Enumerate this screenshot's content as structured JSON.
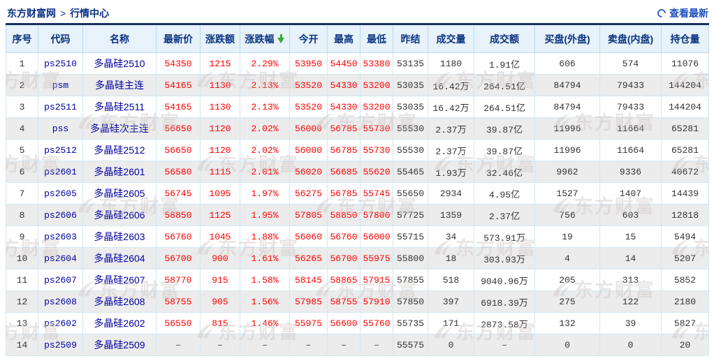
{
  "breadcrumb": {
    "site": "东方财富网",
    "separator": ">",
    "section": "行情中心"
  },
  "toolbar": {
    "refresh_label": "查看最新",
    "refresh_icon": "refresh-circle"
  },
  "watermark": {
    "text": "东方财富",
    "logo_icon": "eastmoney-swoosh"
  },
  "colors": {
    "accent_navy": "#16305e",
    "header_bg": "#e7f2fb",
    "header_text": "#0a3380",
    "link_blue": "#0000a0",
    "up_red": "#ff0000",
    "sort_arrow_green": "#2fae2f",
    "row_alt_gray": "#ececec"
  },
  "table": {
    "columns": [
      "序号",
      "代码",
      "名称",
      "最新价",
      "涨跌额",
      "涨跌幅",
      "今开",
      "最高",
      "最低",
      "昨结",
      "成交量",
      "成交额",
      "买盘(外盘)",
      "卖盘(内盘)",
      "持仓量"
    ],
    "column_keys": [
      "seq",
      "code",
      "name",
      "last",
      "change",
      "pct",
      "open",
      "high",
      "low",
      "prevsettle",
      "volume",
      "turnover",
      "buy-outer",
      "sell-inner",
      "open-interest"
    ],
    "sorted_column": "涨跌幅",
    "sort_direction": "desc",
    "rows": [
      [
        "1",
        "ps2510",
        "多晶硅2510",
        "54350",
        "1215",
        "2.29%",
        "53950",
        "54450",
        "53380",
        "53135",
        "1180",
        "1.91亿",
        "606",
        "574",
        "11076"
      ],
      [
        "2",
        "psm",
        "多晶硅主连",
        "54165",
        "1130",
        "2.13%",
        "53520",
        "54330",
        "53200",
        "53035",
        "16.42万",
        "264.51亿",
        "84794",
        "79433",
        "144204"
      ],
      [
        "3",
        "ps2511",
        "多晶硅2511",
        "54165",
        "1130",
        "2.13%",
        "53520",
        "54330",
        "53200",
        "53035",
        "16.42万",
        "264.51亿",
        "84794",
        "79433",
        "144204"
      ],
      [
        "4",
        "pss",
        "多晶硅次主连",
        "56650",
        "1120",
        "2.02%",
        "56000",
        "56785",
        "55730",
        "55530",
        "2.37万",
        "39.87亿",
        "11996",
        "11664",
        "65281"
      ],
      [
        "5",
        "ps2512",
        "多晶硅2512",
        "56650",
        "1120",
        "2.02%",
        "56000",
        "56785",
        "55730",
        "55530",
        "2.37万",
        "39.87亿",
        "11996",
        "11664",
        "65281"
      ],
      [
        "6",
        "ps2601",
        "多晶硅2601",
        "56580",
        "1115",
        "2.01%",
        "56020",
        "56685",
        "55620",
        "55465",
        "1.93万",
        "32.46亿",
        "9962",
        "9336",
        "40672"
      ],
      [
        "7",
        "ps2605",
        "多晶硅2605",
        "56745",
        "1095",
        "1.97%",
        "56275",
        "56785",
        "55745",
        "55650",
        "2934",
        "4.95亿",
        "1527",
        "1407",
        "14439"
      ],
      [
        "8",
        "ps2606",
        "多晶硅2606",
        "58850",
        "1125",
        "1.95%",
        "57805",
        "58850",
        "57800",
        "57725",
        "1359",
        "2.37亿",
        "756",
        "603",
        "12818"
      ],
      [
        "9",
        "ps2603",
        "多晶硅2603",
        "56760",
        "1045",
        "1.88%",
        "56060",
        "56760",
        "56000",
        "55715",
        "34",
        "573.91万",
        "19",
        "15",
        "5494"
      ],
      [
        "10",
        "ps2604",
        "多晶硅2604",
        "56700",
        "900",
        "1.61%",
        "56265",
        "56700",
        "55975",
        "55800",
        "18",
        "303.93万",
        "4",
        "14",
        "5207"
      ],
      [
        "11",
        "ps2607",
        "多晶硅2607",
        "58770",
        "915",
        "1.58%",
        "58145",
        "58865",
        "57915",
        "57855",
        "518",
        "9040.96万",
        "205",
        "313",
        "5852"
      ],
      [
        "12",
        "ps2608",
        "多晶硅2608",
        "58755",
        "905",
        "1.56%",
        "57985",
        "58755",
        "57910",
        "57850",
        "397",
        "6918.39万",
        "275",
        "122",
        "2180"
      ],
      [
        "13",
        "ps2602",
        "多晶硅2602",
        "56550",
        "815",
        "1.46%",
        "55975",
        "56600",
        "55760",
        "55735",
        "171",
        "2873.58万",
        "132",
        "39",
        "5827"
      ],
      [
        "14",
        "ps2509",
        "多晶硅2509",
        "–",
        "–",
        "–",
        "–",
        "–",
        "–",
        "55575",
        "0",
        "–",
        "0",
        "0",
        "20"
      ]
    ]
  }
}
